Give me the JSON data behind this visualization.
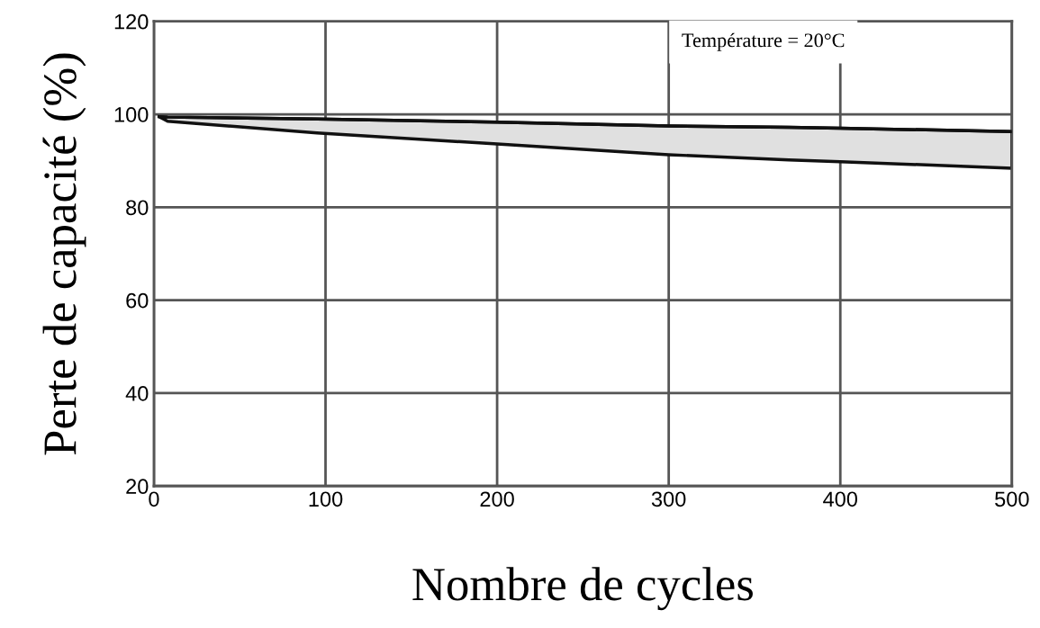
{
  "chart_data": {
    "type": "line",
    "xlabel": "Nombre de cycles",
    "ylabel": "Perte de capacité (%)",
    "xlim": [
      0,
      500
    ],
    "xticks": [
      0,
      100,
      200,
      300,
      400,
      500
    ],
    "ylim": [
      20,
      120
    ],
    "yticks": [
      20,
      40,
      60,
      80,
      100,
      120
    ],
    "grid": true,
    "annotations": [
      "Température = 20°C"
    ],
    "series": [
      {
        "color": "#111111",
        "x": [
          3,
          8,
          95,
          200,
          300,
          370,
          400,
          500
        ],
        "values": [
          99.5,
          99.4,
          99.0,
          98.3,
          97.5,
          97.2,
          97.0,
          96.3
        ],
        "lower": [
          99.5,
          98.5,
          96,
          93.6,
          91.3,
          90.2,
          89.8,
          88.4
        ],
        "upper": [
          99.5,
          99.4,
          99.0,
          98.3,
          97.5,
          97.2,
          97.0,
          96.3
        ]
      }
    ]
  }
}
